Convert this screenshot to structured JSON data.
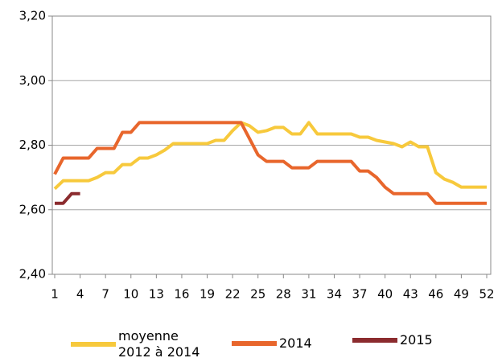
{
  "chart_data": {
    "type": "line",
    "x": [
      1,
      2,
      3,
      4,
      5,
      6,
      7,
      8,
      9,
      10,
      11,
      12,
      13,
      14,
      15,
      16,
      17,
      18,
      19,
      20,
      21,
      22,
      23,
      24,
      25,
      26,
      27,
      28,
      29,
      30,
      31,
      32,
      33,
      34,
      35,
      36,
      37,
      38,
      39,
      40,
      41,
      42,
      43,
      44,
      45,
      46,
      47,
      48,
      49,
      50,
      51,
      52
    ],
    "xlim": [
      1,
      52
    ],
    "xticks": [
      1,
      4,
      7,
      10,
      13,
      16,
      19,
      22,
      25,
      28,
      31,
      34,
      37,
      40,
      43,
      46,
      49,
      52
    ],
    "ylim": [
      2.4,
      3.2
    ],
    "yticks": [
      {
        "value": 2.4,
        "label": "2,40"
      },
      {
        "value": 2.6,
        "label": "2,60"
      },
      {
        "value": 2.8,
        "label": "2,80"
      },
      {
        "value": 3.0,
        "label": "3,00"
      },
      {
        "value": 3.2,
        "label": "3,20"
      }
    ],
    "grid": true,
    "legend": "bottom",
    "series": [
      {
        "name": "moyenne\n2012 à 2014",
        "color": "#f7c93c",
        "values": [
          2.665,
          2.69,
          2.69,
          2.69,
          2.69,
          2.7,
          2.715,
          2.715,
          2.74,
          2.74,
          2.76,
          2.76,
          2.77,
          2.785,
          2.805,
          2.805,
          2.805,
          2.805,
          2.805,
          2.815,
          2.815,
          2.845,
          2.87,
          2.86,
          2.84,
          2.845,
          2.855,
          2.855,
          2.835,
          2.835,
          2.87,
          2.835,
          2.835,
          2.835,
          2.835,
          2.835,
          2.825,
          2.825,
          2.815,
          2.81,
          2.805,
          2.795,
          2.81,
          2.795,
          2.795,
          2.715,
          2.695,
          2.685,
          2.67,
          2.67,
          2.67,
          2.67
        ]
      },
      {
        "name": "2014",
        "color": "#e8662c",
        "values": [
          2.71,
          2.76,
          2.76,
          2.76,
          2.76,
          2.79,
          2.79,
          2.79,
          2.84,
          2.84,
          2.87,
          2.87,
          2.87,
          2.87,
          2.87,
          2.87,
          2.87,
          2.87,
          2.87,
          2.87,
          2.87,
          2.87,
          2.87,
          2.82,
          2.77,
          2.75,
          2.75,
          2.75,
          2.73,
          2.73,
          2.73,
          2.75,
          2.75,
          2.75,
          2.75,
          2.75,
          2.72,
          2.72,
          2.7,
          2.67,
          2.65,
          2.65,
          2.65,
          2.65,
          2.65,
          2.62,
          2.62,
          2.62,
          2.62,
          2.62,
          2.62,
          2.62
        ]
      },
      {
        "name": "2015",
        "color": "#8b2b2e",
        "values": [
          2.62,
          2.62,
          2.65,
          2.65,
          null,
          null,
          null,
          null,
          null,
          null,
          null,
          null,
          null,
          null,
          null,
          null,
          null,
          null,
          null,
          null,
          null,
          null,
          null,
          null,
          null,
          null,
          null,
          null,
          null,
          null,
          null,
          null,
          null,
          null,
          null,
          null,
          null,
          null,
          null,
          null,
          null,
          null,
          null,
          null,
          null,
          null,
          null,
          null,
          null,
          null,
          null,
          null
        ]
      }
    ]
  }
}
